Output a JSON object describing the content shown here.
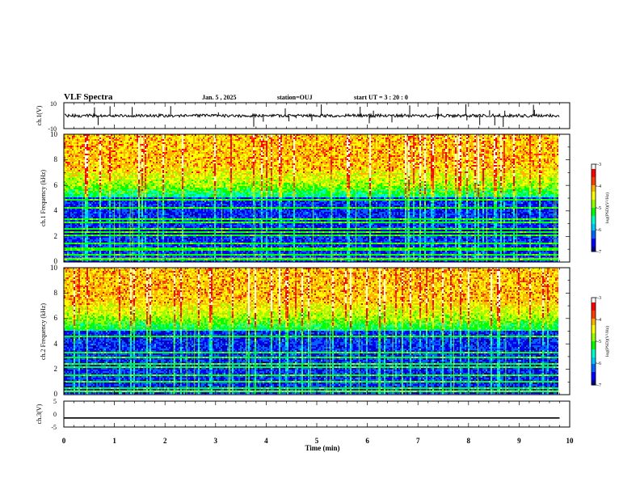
{
  "header": {
    "title": "VLF Spectra",
    "date": "Jan. 5 , 2025",
    "station": "station=OUJ",
    "start_ut": "start UT = 3 : 20 : 0"
  },
  "chart_data": [
    {
      "type": "line",
      "panel": "ch1-waveform",
      "ylabel": "ch.1(V)",
      "ylim": [
        -10,
        10
      ],
      "yticks": [
        "10",
        "-10"
      ],
      "baseline": 0,
      "xlim": [
        0,
        10
      ],
      "data_end_min": 9.8,
      "color": "#000000"
    },
    {
      "type": "heatmap",
      "panel": "ch1-spectrogram",
      "ylabel": "ch.1 Frequency (kHz)",
      "ylim": [
        0,
        10
      ],
      "yticks": [
        "0",
        "2",
        "4",
        "6",
        "8",
        "10"
      ],
      "xlim": [
        0,
        10
      ],
      "data_end_min": 9.8,
      "colorbar": {
        "label": "log(PSD)(V²/Hz)",
        "range": [
          -7,
          -3
        ],
        "ticks": [
          "-3",
          "-4",
          "-5",
          "-6",
          "-7"
        ]
      }
    },
    {
      "type": "heatmap",
      "panel": "ch2-spectrogram",
      "ylabel": "ch.2 Frequency (kHz)",
      "ylim": [
        0,
        10
      ],
      "yticks": [
        "0",
        "2",
        "4",
        "6",
        "8",
        "10"
      ],
      "xlim": [
        0,
        10
      ],
      "data_end_min": 9.8,
      "colorbar": {
        "label": "log(PSD)(V²/Hz)",
        "range": [
          -7,
          -3
        ],
        "ticks": [
          "-3",
          "-4",
          "-5",
          "-6",
          "-7"
        ]
      }
    },
    {
      "type": "line",
      "panel": "ch3-waveform",
      "ylabel": "ch.3(V)",
      "ylim": [
        -5,
        5
      ],
      "yticks": [
        "5",
        "0",
        "-5"
      ],
      "x": [
        0,
        9.8
      ],
      "y": [
        -1.5,
        -1.5
      ],
      "color": "#000000"
    }
  ],
  "xaxis": {
    "label": "Time (min)",
    "ticks": [
      "0",
      "1",
      "2",
      "3",
      "4",
      "5",
      "6",
      "7",
      "8",
      "9",
      "10"
    ]
  },
  "colors": {
    "colormap": [
      "#00008b",
      "#0000ff",
      "#0064ff",
      "#00c8ff",
      "#00ffc8",
      "#00ff00",
      "#96ff00",
      "#ffff00",
      "#ffb400",
      "#ff3c00",
      "#ff0000",
      "#ffffff"
    ]
  }
}
